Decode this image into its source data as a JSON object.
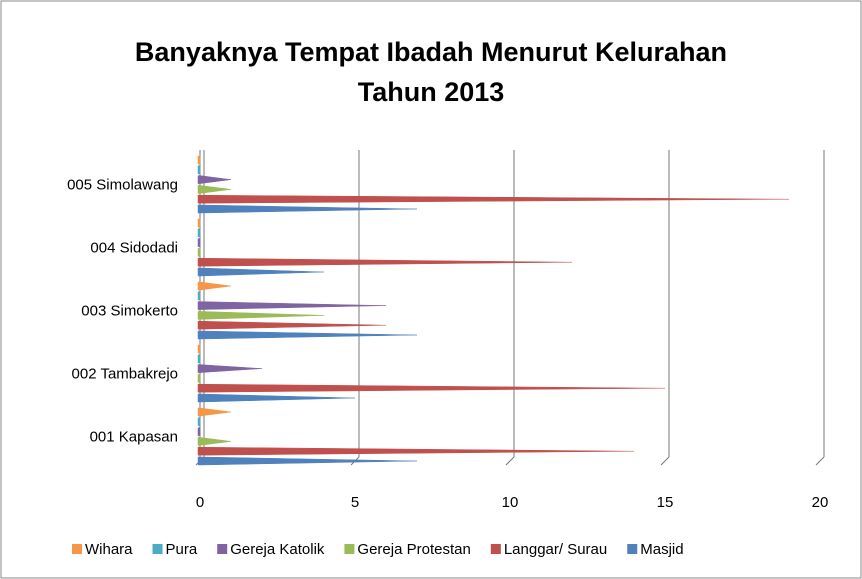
{
  "chart_data": {
    "type": "bar",
    "orientation": "horizontal",
    "title": "Banyaknya Tempat Ibadah Menurut Kelurahan Tahun 2013",
    "categories": [
      "001  Kapasan",
      "002  Tambakrejo",
      "003  Simokerto",
      "004  Sidodadi",
      "005  Simolawang"
    ],
    "series": [
      {
        "name": "Wihara",
        "color": "#f79646",
        "values": [
          1,
          0,
          1,
          0,
          0
        ]
      },
      {
        "name": "Pura",
        "color": "#4bacc6",
        "values": [
          0,
          0,
          0,
          0,
          0
        ]
      },
      {
        "name": "Gereja Katolik",
        "color": "#8064a2",
        "values": [
          0,
          2,
          6,
          0,
          1
        ]
      },
      {
        "name": "Gereja Protestan",
        "color": "#9bbb59",
        "values": [
          1,
          0,
          4,
          0,
          1
        ]
      },
      {
        "name": "Langgar/ Surau",
        "color": "#c0504d",
        "values": [
          14,
          15,
          6,
          12,
          19
        ]
      },
      {
        "name": "Masjid",
        "color": "#4f81bd",
        "values": [
          7,
          5,
          7,
          4,
          7
        ]
      }
    ],
    "xlim": [
      0,
      20
    ],
    "xticks": [
      0,
      5,
      10,
      15,
      20
    ],
    "grid": true,
    "legend": "bottom"
  }
}
